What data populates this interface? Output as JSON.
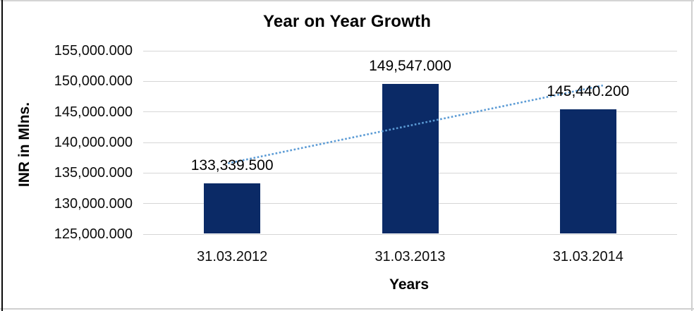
{
  "chart_data": {
    "type": "bar",
    "title": "Year on Year Growth",
    "xlabel": "Years",
    "ylabel": "INR in Mlns.",
    "categories": [
      "31.03.2012",
      "31.03.2013",
      "31.03.2014"
    ],
    "values": [
      133339.5,
      149547.0,
      145440.2
    ],
    "value_labels": [
      "133,339.500",
      "149,547.000",
      "145,440.200"
    ],
    "y_ticks": [
      155000,
      150000,
      145000,
      140000,
      135000,
      130000,
      125000
    ],
    "y_tick_labels": [
      "155,000.000",
      "150,000.000",
      "145,000.000",
      "140,000.000",
      "135,000.000",
      "130,000.000",
      "125,000.000"
    ],
    "ylim": [
      125000,
      155000
    ],
    "grid": "horizontal",
    "legend": "none",
    "trendline": {
      "type": "linear",
      "style": "dotted",
      "start_value": 136725.2,
      "end_value": 148825.9
    }
  },
  "colors": {
    "bar_fill": "#0B2A66",
    "trendline": "#5B9BD5",
    "gridline": "#D6D6D6",
    "text": "#000000"
  }
}
